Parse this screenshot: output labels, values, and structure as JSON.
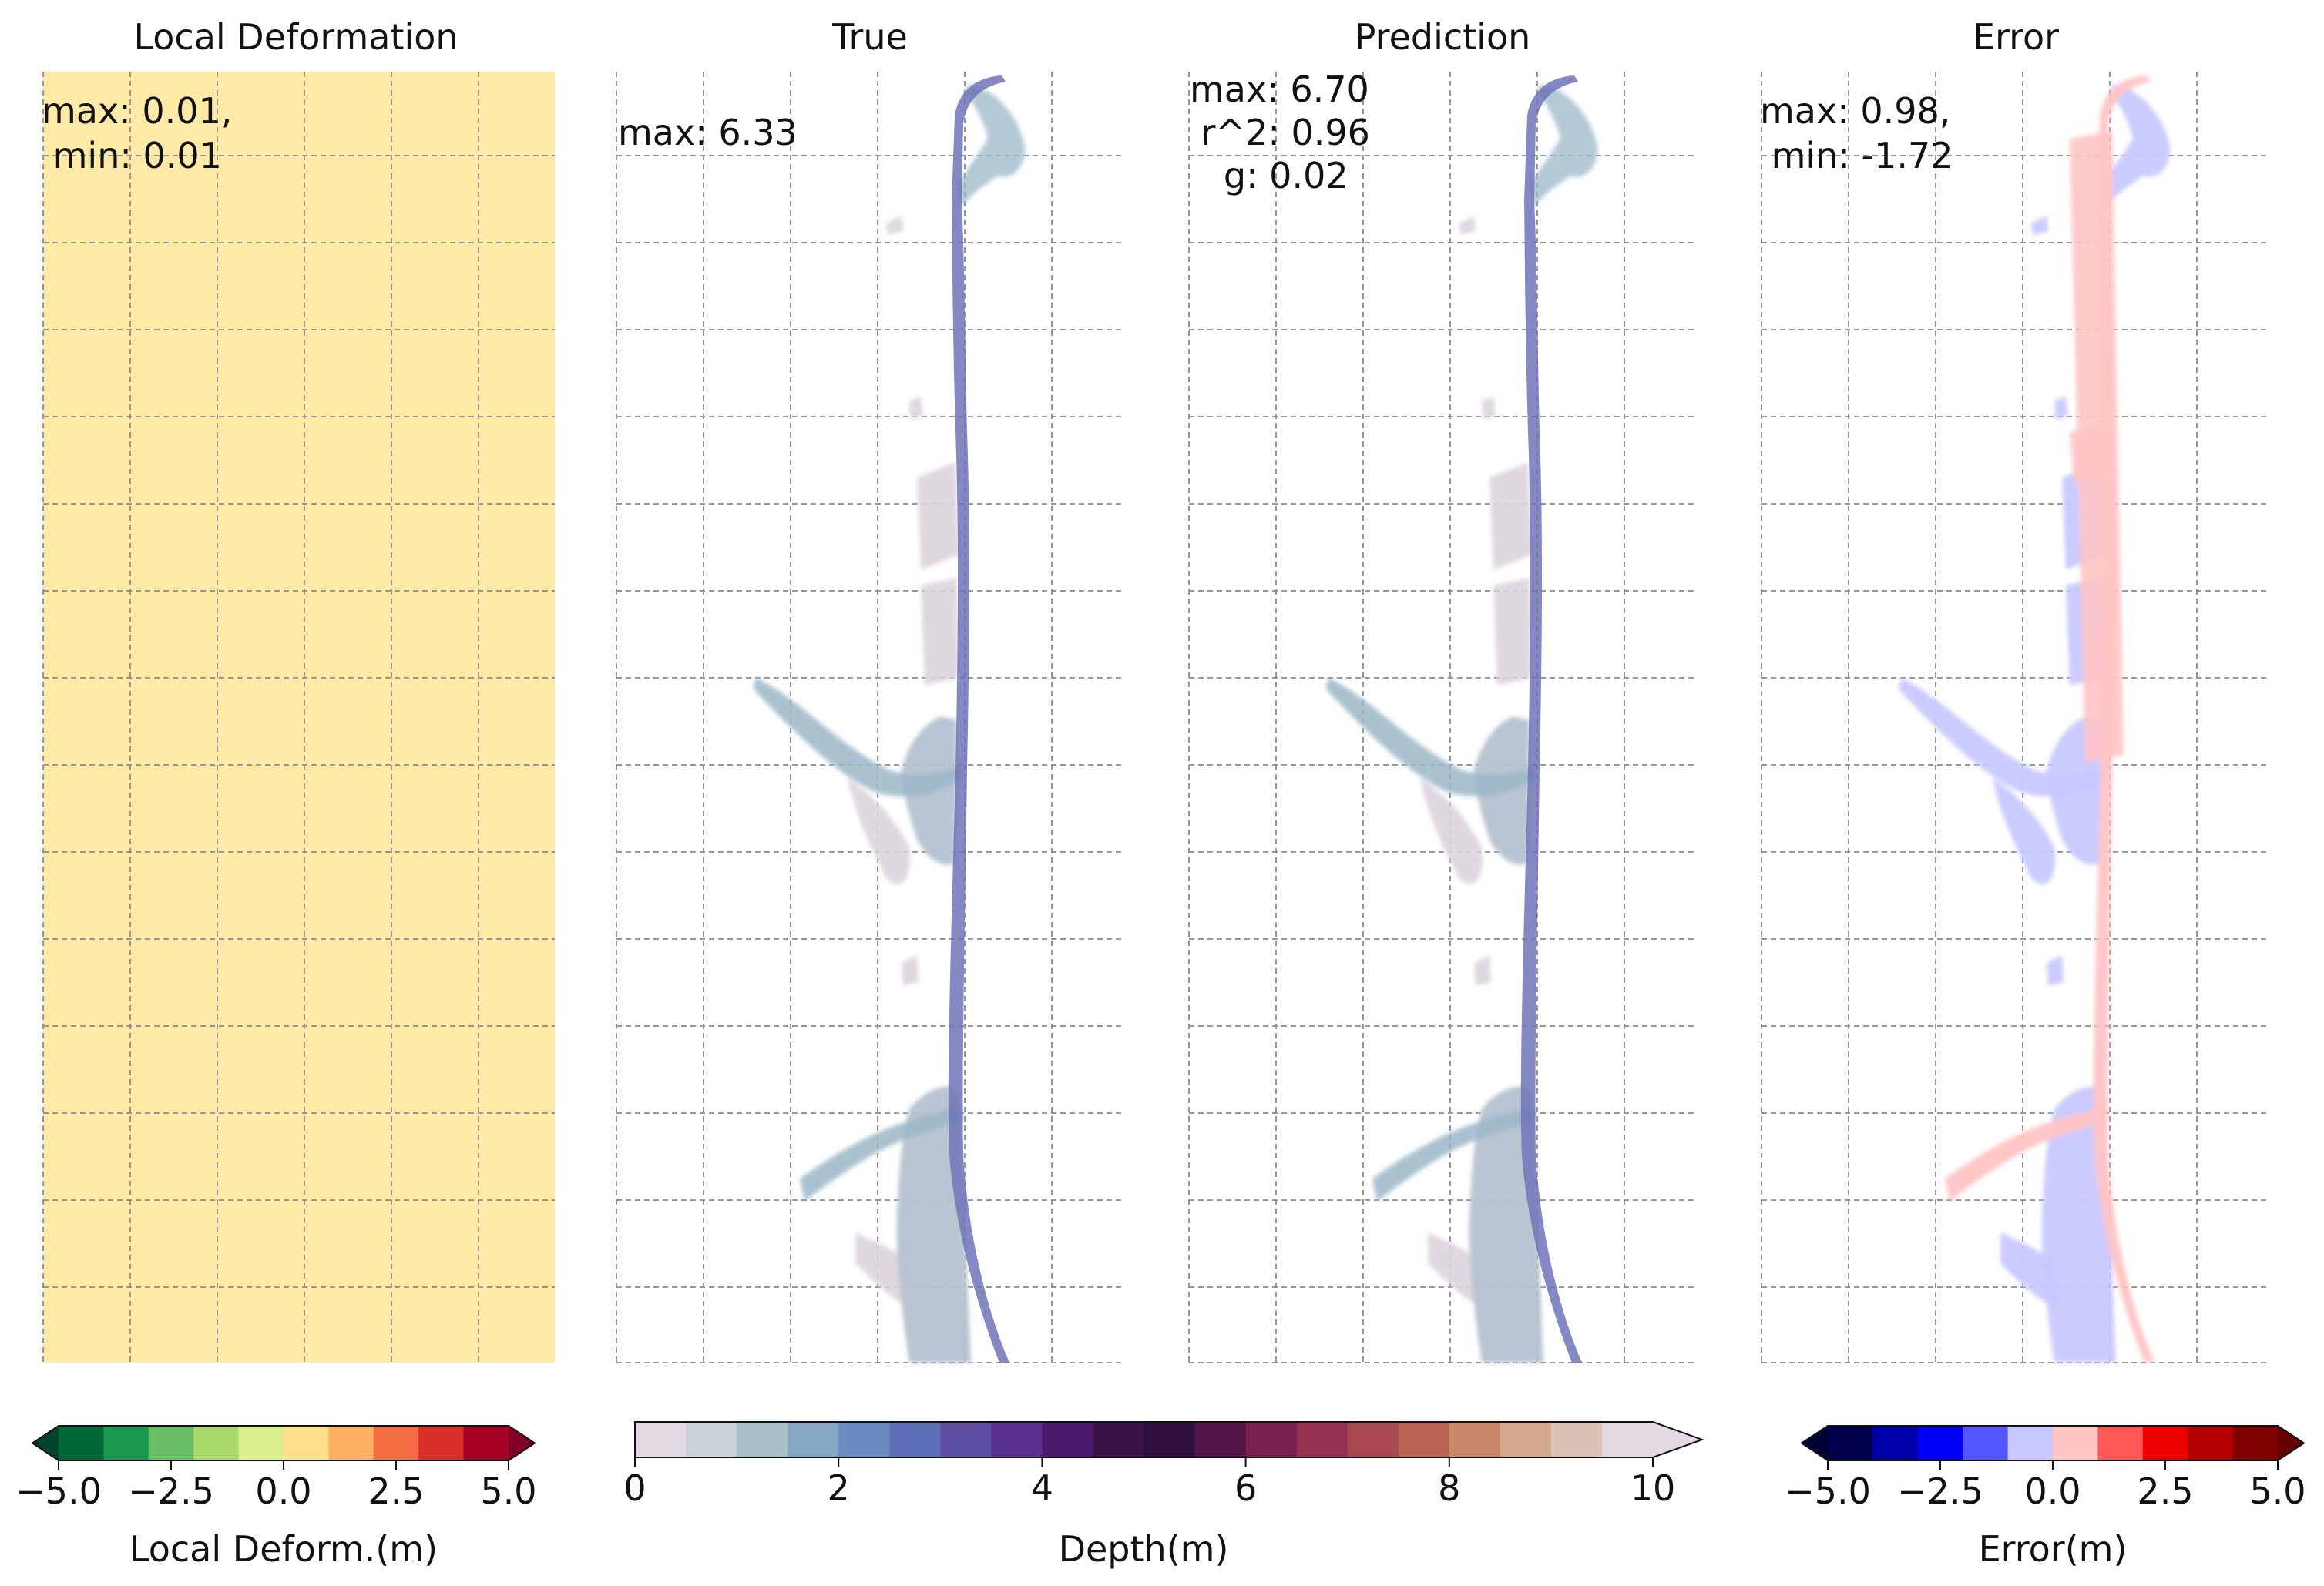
{
  "chart_data": [
    {
      "type": "heatmap",
      "title": "Local Deformation",
      "annotation": [
        "max: 0.01,",
        " min: 0.01"
      ],
      "uniform_value": 0.01,
      "grid": true,
      "colorbar": {
        "label": "Local Deform.(m)",
        "ticks": [
          "−5.0",
          "−2.5",
          "0.0",
          "2.5",
          "5.0"
        ],
        "range": [
          -5,
          5
        ],
        "extend": "both",
        "colors": [
          "#006837",
          "#1a9850",
          "#66bd63",
          "#a6d96a",
          "#d9ef8b",
          "#fee08b",
          "#fdae61",
          "#f46d43",
          "#d73027",
          "#a50026"
        ],
        "extend_low": "#004529",
        "extend_high": "#800026"
      }
    },
    {
      "type": "heatmap",
      "title": "True",
      "annotation": [
        "max: 6.33"
      ],
      "max": 6.33,
      "grid": true
    },
    {
      "type": "heatmap",
      "title": "Prediction",
      "annotation": [
        "max: 6.70",
        " r^2: 0.96",
        "   g: 0.02"
      ],
      "max": 6.7,
      "r2": 0.96,
      "g": 0.02,
      "grid": true,
      "colorbar": {
        "label": "Depth(m)",
        "ticks": [
          "0",
          "2",
          "4",
          "6",
          "8",
          "10"
        ],
        "range": [
          0,
          10
        ],
        "extend": "max",
        "colors": [
          "#e2d9e2",
          "#c9d2d8",
          "#a7c0cc",
          "#85a7c3",
          "#6a8cc0",
          "#5f6fb7",
          "#5e4fa2",
          "#56308c",
          "#4a1b6b",
          "#3a1148",
          "#2f0f3d",
          "#521545",
          "#781f4e",
          "#953051",
          "#a8494f",
          "#bb6453",
          "#c9876a",
          "#d2a78c",
          "#d8c3b6",
          "#e2d9e2"
        ],
        "extend_high": "#e2d9e2"
      }
    },
    {
      "type": "heatmap",
      "title": "Error",
      "annotation": [
        "max: 0.98,",
        " min: -1.72"
      ],
      "max": 0.98,
      "min": -1.72,
      "grid": true,
      "colorbar": {
        "label": "Error(m)",
        "ticks": [
          "−5.0",
          "−2.5",
          "0.0",
          "2.5",
          "5.0"
        ],
        "range": [
          -5,
          5
        ],
        "extend": "both",
        "colors": [
          "#00004c",
          "#0000a8",
          "#0000f5",
          "#5555ff",
          "#c8c8ff",
          "#ffc4c4",
          "#ff5656",
          "#ee0000",
          "#b40000",
          "#800000"
        ],
        "extend_low": "#000033",
        "extend_high": "#660000"
      }
    }
  ],
  "colors": {
    "deformation_fill": "#fdeaa6",
    "depth_light": "#dcd4dc",
    "depth_mid": "#9bb7c8",
    "depth_channel": "#6f74b8",
    "error_pos": "#ffc4c4",
    "error_neg": "#c8c8ff",
    "grid": "#8a8a8a"
  }
}
